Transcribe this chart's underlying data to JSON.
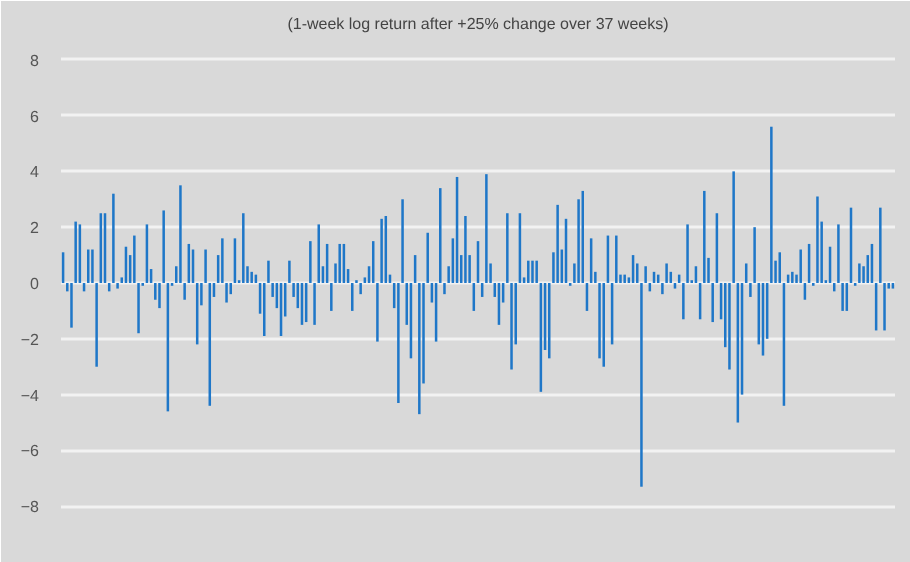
{
  "chart_data": {
    "type": "bar",
    "subtitle": "(1-week log return after +25% change over 37 weeks)",
    "categories": [
      null,
      null,
      null,
      null,
      null,
      null,
      null,
      null,
      null,
      null,
      null,
      null,
      null,
      null,
      null,
      null,
      null,
      null,
      null,
      null,
      null,
      null,
      null,
      null,
      null,
      null,
      null,
      null,
      null,
      null,
      null,
      null,
      null,
      null,
      null,
      null,
      null,
      null,
      null,
      null,
      null,
      null,
      null,
      null,
      null,
      null,
      null,
      null,
      null,
      null,
      null,
      null,
      null,
      null,
      null,
      null,
      null,
      null,
      null,
      null,
      null,
      null,
      null,
      null,
      null,
      null,
      null,
      null,
      null,
      null,
      null,
      null,
      null,
      null,
      null,
      null,
      null,
      null,
      null,
      null,
      null,
      null,
      null,
      null,
      null,
      null,
      null,
      null,
      null,
      null,
      null,
      null,
      null,
      null,
      null,
      null,
      null,
      null,
      null,
      null,
      null,
      null,
      null,
      null,
      null,
      null,
      null,
      null,
      null,
      null,
      null,
      null,
      null,
      null,
      null,
      null,
      null,
      null,
      null,
      null,
      null,
      null,
      null,
      null,
      null,
      null,
      null,
      null,
      null,
      null,
      null,
      null,
      null,
      null,
      null,
      null,
      null,
      null,
      null,
      null,
      null,
      null,
      null,
      null,
      null,
      null,
      null,
      null,
      null,
      null,
      null,
      null,
      null,
      null,
      null,
      null,
      null,
      null,
      null,
      null,
      null,
      null,
      null,
      null,
      null,
      null,
      null,
      null,
      null,
      null,
      null,
      null,
      null,
      null,
      null,
      null,
      null,
      null,
      null,
      null,
      null,
      null,
      null,
      null,
      null,
      null,
      null,
      null,
      null,
      null,
      null,
      null,
      null,
      null,
      null,
      null,
      null,
      null,
      null
    ],
    "values": [
      1.1,
      -0.3,
      -1.6,
      2.2,
      2.1,
      -0.3,
      1.2,
      1.2,
      -3.0,
      2.5,
      2.5,
      -0.3,
      3.2,
      -0.2,
      0.2,
      1.3,
      1.0,
      1.7,
      -1.8,
      -0.1,
      2.1,
      0.5,
      -0.6,
      -0.9,
      2.6,
      -4.6,
      -0.1,
      0.6,
      3.5,
      -0.6,
      1.4,
      1.2,
      -2.2,
      -0.8,
      1.2,
      -4.4,
      -0.5,
      1.0,
      1.6,
      -0.7,
      -0.4,
      1.6,
      0.1,
      2.5,
      0.6,
      0.4,
      0.3,
      -1.1,
      -1.9,
      0.8,
      -0.5,
      -0.9,
      -1.9,
      -1.2,
      0.8,
      -0.5,
      -0.9,
      -1.5,
      -1.4,
      1.5,
      -1.5,
      2.1,
      0.6,
      1.4,
      -1.0,
      0.7,
      1.4,
      1.4,
      0.5,
      -1.0,
      0.1,
      -0.4,
      0.2,
      0.6,
      1.5,
      -2.1,
      2.3,
      2.4,
      0.3,
      -0.9,
      -4.3,
      3.0,
      -1.5,
      -2.7,
      1.0,
      -4.7,
      -3.6,
      1.8,
      -0.7,
      -2.1,
      3.4,
      -0.4,
      0.6,
      1.6,
      3.8,
      1.0,
      2.4,
      1.0,
      -1.0,
      1.5,
      -0.5,
      3.9,
      0.7,
      -0.5,
      -1.5,
      -0.7,
      2.5,
      -3.1,
      -2.2,
      2.5,
      0.2,
      0.8,
      0.8,
      0.8,
      -3.9,
      -2.4,
      -2.7,
      1.1,
      2.8,
      1.2,
      2.3,
      -0.1,
      0.7,
      3.0,
      3.3,
      -1.0,
      1.6,
      0.4,
      -2.7,
      -3.0,
      1.7,
      -2.2,
      1.7,
      0.3,
      0.3,
      0.2,
      1.0,
      0.7,
      -7.3,
      0.6,
      -0.3,
      0.4,
      0.3,
      -0.4,
      0.7,
      0.4,
      -0.2,
      0.3,
      -1.3,
      2.1,
      0.1,
      0.6,
      -1.3,
      3.3,
      0.9,
      -1.4,
      2.5,
      -1.3,
      -2.3,
      -3.1,
      4.0,
      -5.0,
      -4.0,
      0.7,
      -0.5,
      2.0,
      -2.2,
      -2.6,
      -2.0,
      5.6,
      0.8,
      1.1,
      -4.4,
      0.3,
      0.4,
      0.3,
      1.2,
      -0.6,
      1.4,
      -0.1,
      3.1,
      2.2,
      0.1,
      1.3,
      -0.3,
      2.1,
      -1.0,
      -1.0,
      2.7,
      -0.1,
      0.7,
      0.6,
      1.0,
      1.4,
      -1.7,
      2.7,
      -1.7,
      -0.2,
      -0.2
    ],
    "color": "#1f77c8",
    "ylim": [
      -8.6,
      8.6
    ],
    "yticks": [
      -8,
      -6,
      -4,
      -2,
      0,
      2,
      4,
      6,
      8
    ],
    "grid": "y"
  }
}
